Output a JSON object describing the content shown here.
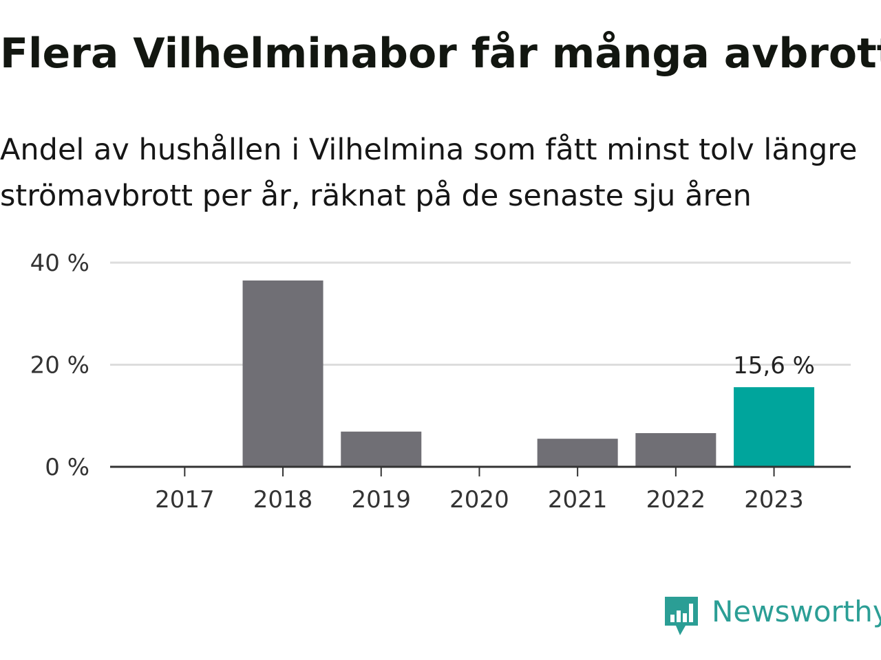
{
  "title": "Flera Vilhelminabor får många avbrott",
  "subtitle": "Andel av hushållen i Vilhelmina som fått minst tolv längre strömavbrott per år, räknat på de senaste sju åren",
  "brand": {
    "name": "Newsworthy",
    "icon": "newsworthy-logo-icon",
    "color": "#2b9e95"
  },
  "colors": {
    "bar": "#706f75",
    "highlight": "#00a59c",
    "grid": "#dddddd",
    "axis": "#333333"
  },
  "chart_data": {
    "type": "bar",
    "title": "Flera Vilhelminabor får många avbrott",
    "subtitle": "Andel av hushållen i Vilhelmina som fått minst tolv längre strömavbrott per år, räknat på de senaste sju åren",
    "categories": [
      "2017",
      "2018",
      "2019",
      "2020",
      "2021",
      "2022",
      "2023"
    ],
    "values": [
      0,
      36.5,
      6.9,
      0,
      5.5,
      6.6,
      15.6
    ],
    "unit": "%",
    "ylim": [
      0,
      40
    ],
    "yticks": [
      0,
      20,
      40
    ],
    "ytick_labels": [
      "0 %",
      "20 %",
      "40 %"
    ],
    "highlight_index": 6,
    "data_labels": [
      {
        "index": 6,
        "text": "15,6 %"
      }
    ],
    "grid": true,
    "legend": "none",
    "xlabel": "",
    "ylabel": ""
  }
}
